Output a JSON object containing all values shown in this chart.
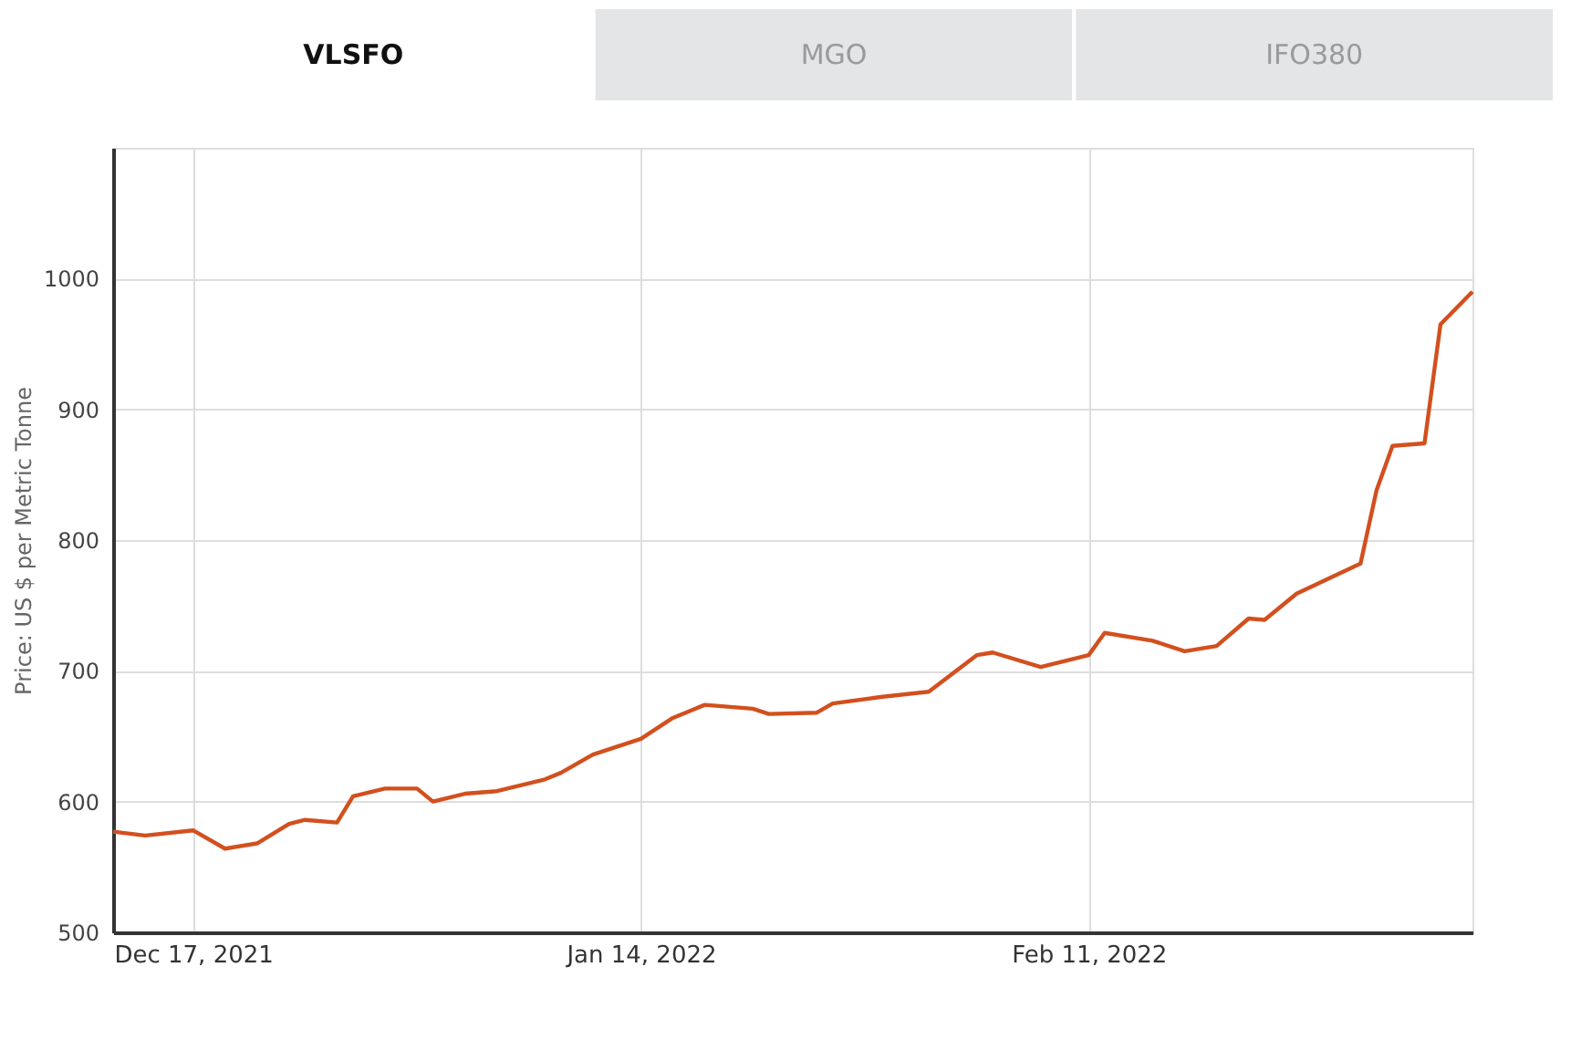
{
  "chart_data": {
    "type": "line",
    "annotations": [
      "VLSFO",
      "MGO",
      "IFO380"
    ],
    "ylabel": "Price: US $ per Metric Tonne",
    "x": [
      "2021-12-12",
      "2021-12-14",
      "2021-12-17",
      "2021-12-19",
      "2021-12-21",
      "2021-12-23",
      "2021-12-24",
      "2021-12-26",
      "2021-12-27",
      "2021-12-29",
      "2021-12-31",
      "2022-01-01",
      "2022-01-03",
      "2022-01-05",
      "2022-01-08",
      "2022-01-09",
      "2022-01-11",
      "2022-01-14",
      "2022-01-16",
      "2022-01-18",
      "2022-01-21",
      "2022-01-22",
      "2022-01-25",
      "2022-01-26",
      "2022-01-29",
      "2022-02-01",
      "2022-02-04",
      "2022-02-05",
      "2022-02-08",
      "2022-02-11",
      "2022-02-12",
      "2022-02-15",
      "2022-02-17",
      "2022-02-19",
      "2022-02-21",
      "2022-02-22",
      "2022-02-24",
      "2022-02-28",
      "2022-03-01",
      "2022-03-02",
      "2022-03-04",
      "2022-03-05",
      "2022-03-07"
    ],
    "series": [
      {
        "color": "#d2501e",
        "values": [
          577,
          574,
          578,
          564,
          568,
          583,
          586,
          584,
          604,
          610,
          610,
          600,
          606,
          608,
          617,
          622,
          636,
          648,
          664,
          674,
          671,
          667,
          668,
          675,
          680,
          684,
          712,
          714,
          703,
          712,
          729,
          723,
          715,
          719,
          740,
          739,
          759,
          782,
          838,
          872,
          874,
          965,
          990
        ]
      }
    ],
    "xlim": [
      "2021-12-12",
      "2022-03-07"
    ],
    "xticks": [
      {
        "value": "2021-12-17",
        "label": "Dec 17, 2021"
      },
      {
        "value": "2022-01-14",
        "label": "Jan 14, 2022"
      },
      {
        "value": "2022-02-11",
        "label": "Feb 11, 2022"
      }
    ],
    "ylim": [
      500,
      1100
    ],
    "yticks": [
      500,
      600,
      700,
      800,
      900,
      1000
    ],
    "grid": true,
    "marker": "none",
    "line_style": "solid"
  }
}
